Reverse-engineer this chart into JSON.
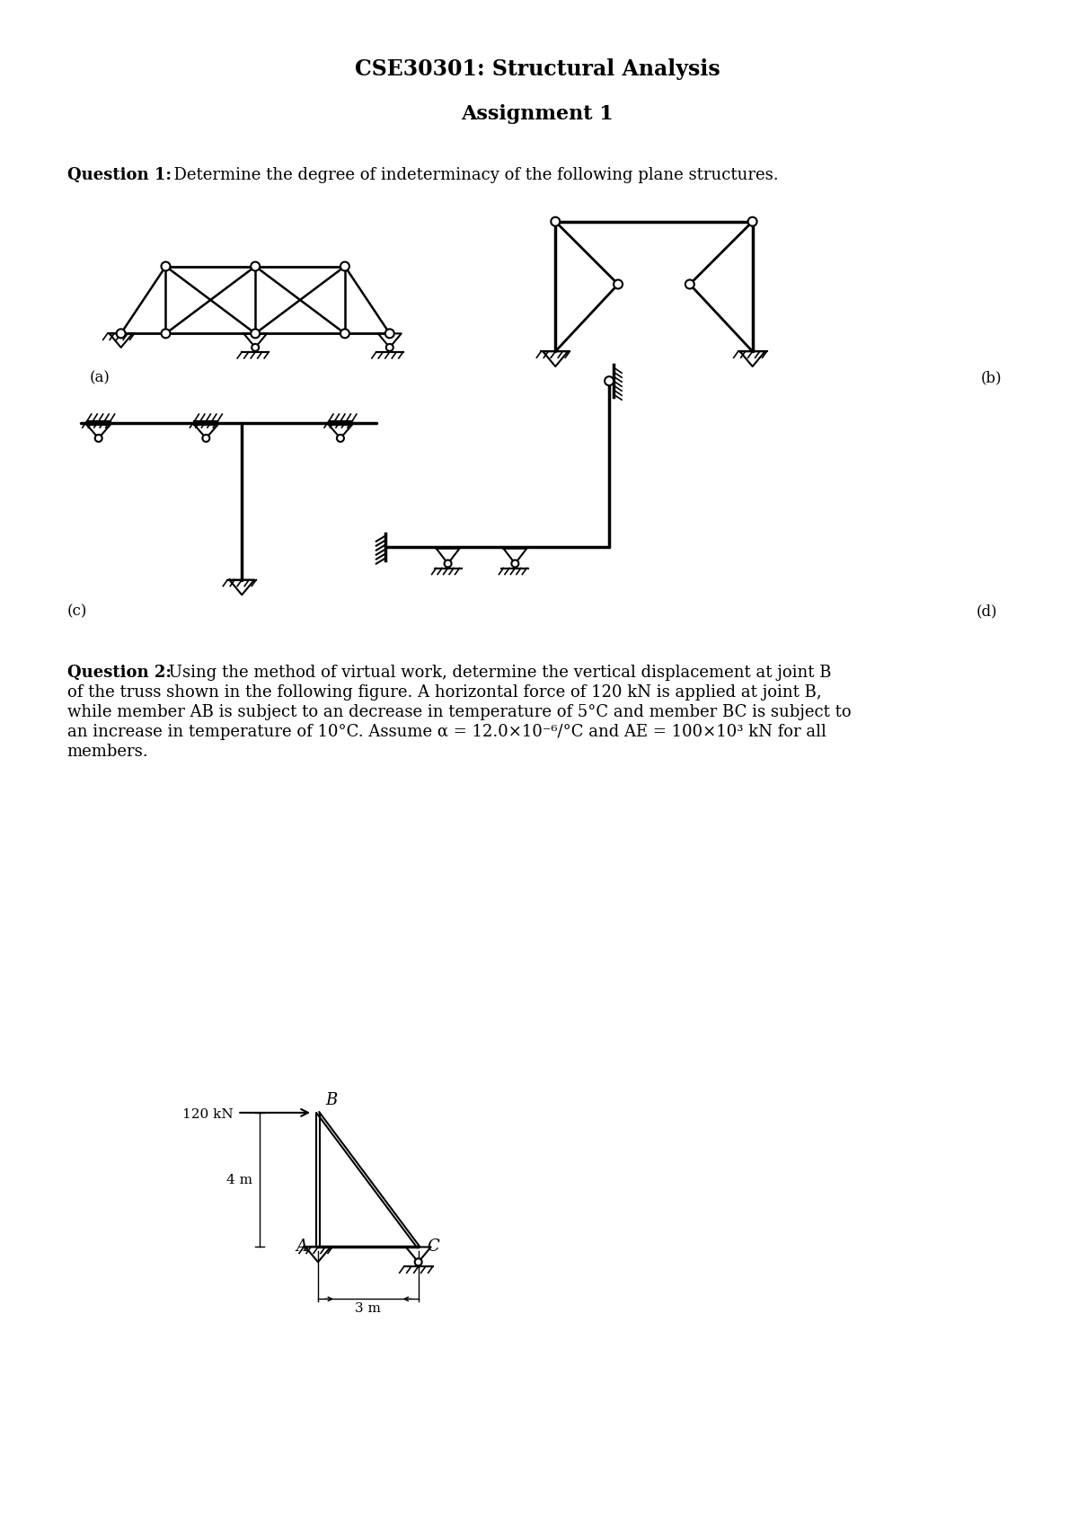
{
  "title1": "CSE30301: Structural Analysis",
  "title2": "Assignment 1",
  "bg_color": "#ffffff",
  "text_color": "#000000",
  "label_a": "(a)",
  "label_b": "(b)",
  "label_c": "(c)",
  "label_d": "(d)",
  "q1_bold": "Question 1:",
  "q1_rest": "  Determine the degree of indeterminacy of the following plane structures.",
  "q2_bold": "Question 2:",
  "q2_rest": " Using the method of virtual work, determine the vertical displacement at joint B\nof the truss shown in the following figure. A horizontal force of 120 kN is applied at joint B,\nwhile member AB is subject to an decrease in temperature of 5°C and member BC is subject to\nan increase in temperature of 10°C. Assume α = 12.0×10⁻⁶/°C and AE = 100×10³ kN for all\nmembers."
}
